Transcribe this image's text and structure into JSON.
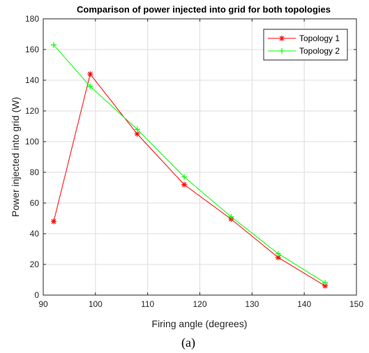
{
  "chart_data": {
    "type": "line",
    "title": "Comparison of power injected into grid for both topologies",
    "xlabel": "Firing angle (degrees)",
    "ylabel": "Power injected into grid (W)",
    "xlim": [
      90,
      150
    ],
    "ylim": [
      0,
      180
    ],
    "xticks": [
      90,
      100,
      110,
      120,
      130,
      140,
      150
    ],
    "yticks": [
      0,
      20,
      40,
      60,
      80,
      100,
      120,
      140,
      160,
      180
    ],
    "grid": true,
    "legend_position": "top-right",
    "series": [
      {
        "name": "Topology 1",
        "color": "#ff0000",
        "marker": "asterisk",
        "x": [
          92,
          99,
          108,
          117,
          126,
          135,
          144
        ],
        "y": [
          48,
          144,
          105,
          72,
          49.5,
          24.5,
          6
        ]
      },
      {
        "name": "Topology 2",
        "color": "#00ff00",
        "marker": "plus",
        "x": [
          92,
          99,
          108,
          117,
          126,
          135,
          144
        ],
        "y": [
          163,
          136,
          108,
          77,
          51,
          27,
          8
        ]
      }
    ]
  },
  "caption": "(a)"
}
